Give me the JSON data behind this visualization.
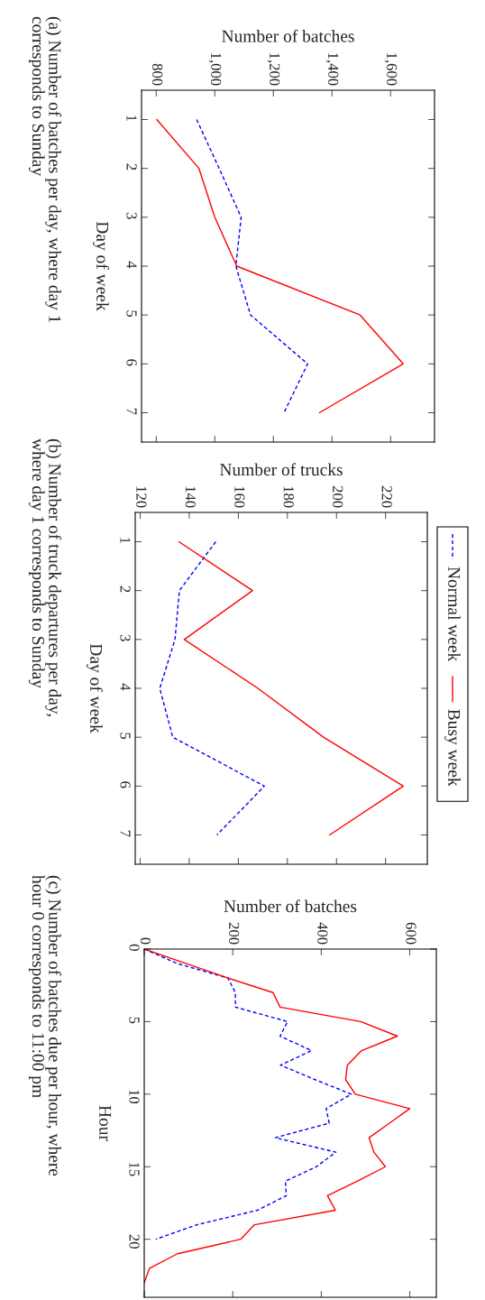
{
  "chart_data": [
    {
      "type": "line",
      "ylabel": "Day of week",
      "xlabel": "Number of batches",
      "xlim": [
        750,
        1750
      ],
      "xticks": [
        800,
        {
          "value": 1000,
          "label": "1,000"
        },
        {
          "value": 1200,
          "label": "1,200"
        },
        {
          "value": 1400,
          "label": "1,400"
        },
        {
          "value": 1600,
          "label": "1,600"
        }
      ],
      "ylim": [
        7.6,
        0.4
      ],
      "yticks": [
        1,
        2,
        3,
        4,
        5,
        6,
        7
      ],
      "grid": false,
      "series": [
        {
          "color": "#0000ff",
          "line_style": "dashed",
          "x": [
            938,
            1015,
            1090,
            1072,
            1122,
            1317,
            1236
          ],
          "values": [
            1,
            2,
            3,
            4,
            5,
            6,
            7
          ]
        },
        {
          "color": "#ff0000",
          "line_style": "solid",
          "x": [
            802,
            946,
            1000,
            1075,
            1496,
            1643,
            1357
          ],
          "values": [
            1,
            2,
            3,
            4,
            5,
            6,
            7
          ]
        }
      ],
      "annotations": [
        "(a) Number of batches per day, where day 1 corresponds to Sunday"
      ]
    },
    {
      "type": "line",
      "ylabel": "Day of week",
      "xlabel": "Number of trucks",
      "xlim": [
        118,
        237
      ],
      "xticks": [
        120,
        140,
        160,
        180,
        200,
        220
      ],
      "ylim": [
        7.6,
        0.4
      ],
      "yticks": [
        1,
        2,
        3,
        4,
        5,
        6,
        7
      ],
      "grid": false,
      "legend": "right",
      "series": [
        {
          "name": "Normal week",
          "color": "#0000ff",
          "line_style": "dashed",
          "x": [
            150.8,
            136,
            134.2,
            128,
            133.3,
            170.6,
            151.3
          ],
          "values": [
            1,
            2,
            3,
            4,
            5,
            6,
            7
          ]
        },
        {
          "name": "Busy week",
          "color": "#ff0000",
          "line_style": "solid",
          "x": [
            135.8,
            165.8,
            138,
            168,
            194.7,
            227.2,
            197.2
          ],
          "values": [
            1,
            2,
            3,
            4,
            5,
            6,
            7
          ]
        }
      ],
      "annotations": [
        "(b) Number of truck departures per day, where day 1 corresponds to Sunday"
      ]
    },
    {
      "type": "line",
      "ylabel": "Hour",
      "xlabel": "Number of batches",
      "xlim": [
        0,
        660
      ],
      "xticks": [
        0,
        200,
        400,
        600
      ],
      "ylim": [
        24,
        0
      ],
      "yticks": [
        0,
        5,
        10,
        15,
        20
      ],
      "grid": false,
      "series": [
        {
          "color": "#0000ff",
          "line_style": "dashed",
          "x": [
            0,
            75,
            189,
            206,
            206,
            324,
            307,
            378,
            308,
            386,
            468,
            411,
            418,
            296,
            433,
            389,
            319,
            321,
            256,
            119,
            26
          ],
          "values": [
            0,
            1,
            2,
            3,
            4,
            5,
            6,
            7,
            8,
            9,
            10,
            11,
            12,
            13,
            14,
            15,
            16,
            17,
            18,
            19,
            20
          ]
        },
        {
          "color": "#ff0000",
          "line_style": "solid",
          "x": [
            0,
            95,
            190,
            291,
            307,
            489,
            572,
            491,
            459,
            455,
            477,
            600,
            554,
            508,
            519,
            545,
            481,
            414,
            432,
            249,
            218,
            75,
            12,
            0
          ],
          "values": [
            0,
            1,
            2,
            3,
            4,
            5,
            6,
            7,
            8,
            9,
            10,
            11,
            12,
            13,
            14,
            15,
            16,
            17,
            18,
            19,
            20,
            21,
            22,
            23
          ]
        }
      ],
      "annotations": [
        "(c) Number of batches due per hour, where hour 0 corresponds to 11:00 pm"
      ]
    }
  ]
}
